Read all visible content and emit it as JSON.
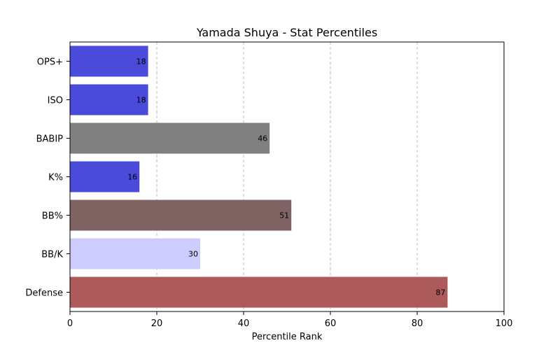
{
  "chart_data": {
    "type": "bar",
    "orientation": "horizontal",
    "title": "Yamada Shuya - Stat Percentiles",
    "xlabel": "Percentile Rank",
    "ylabel": "",
    "xlim": [
      0,
      100
    ],
    "xticks": [
      0,
      20,
      40,
      60,
      80,
      100
    ],
    "grid": "x-dashed",
    "categories": [
      "OPS+",
      "ISO",
      "BABIP",
      "K%",
      "BB%",
      "BB/K",
      "Defense"
    ],
    "values": [
      18,
      18,
      46,
      16,
      51,
      30,
      87
    ],
    "colors": [
      "#4a4adb",
      "#4a4adb",
      "#808080",
      "#4a4adb",
      "#806464",
      "#ccccff",
      "#ac5a5a"
    ]
  }
}
